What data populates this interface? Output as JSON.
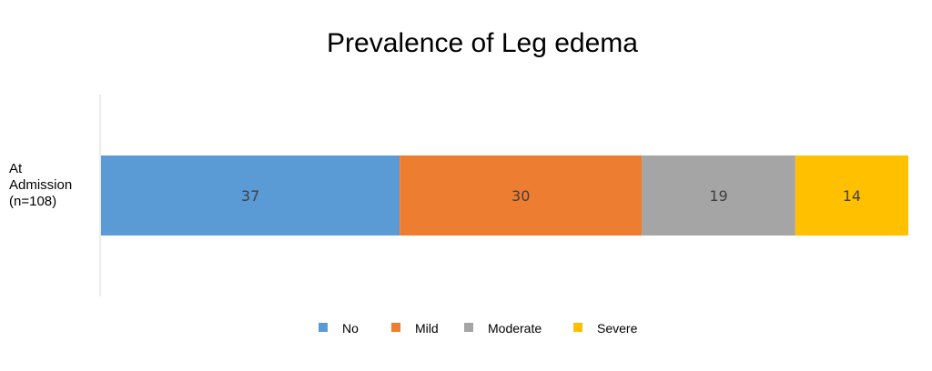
{
  "chart_data": {
    "type": "bar",
    "orientation": "horizontal",
    "stacked": true,
    "title": "Prevalence of Leg edema",
    "category_label_lines": [
      "At",
      "Admission",
      "(n=108)"
    ],
    "categories": [
      "At Admission (n=108)"
    ],
    "series": [
      {
        "name": "No",
        "values": [
          37
        ],
        "color": "#5B9BD5"
      },
      {
        "name": "Mild",
        "values": [
          30
        ],
        "color": "#ED7D31"
      },
      {
        "name": "Moderate",
        "values": [
          19
        ],
        "color": "#A5A5A5"
      },
      {
        "name": "Severe",
        "values": [
          14
        ],
        "color": "#FFC000"
      }
    ],
    "xlim": [
      0,
      100
    ],
    "xlabel": "",
    "ylabel": "",
    "grid": false,
    "legend_position": "bottom"
  },
  "colors": {
    "axis_line": "#D9D9D9",
    "data_label": "#404040"
  }
}
